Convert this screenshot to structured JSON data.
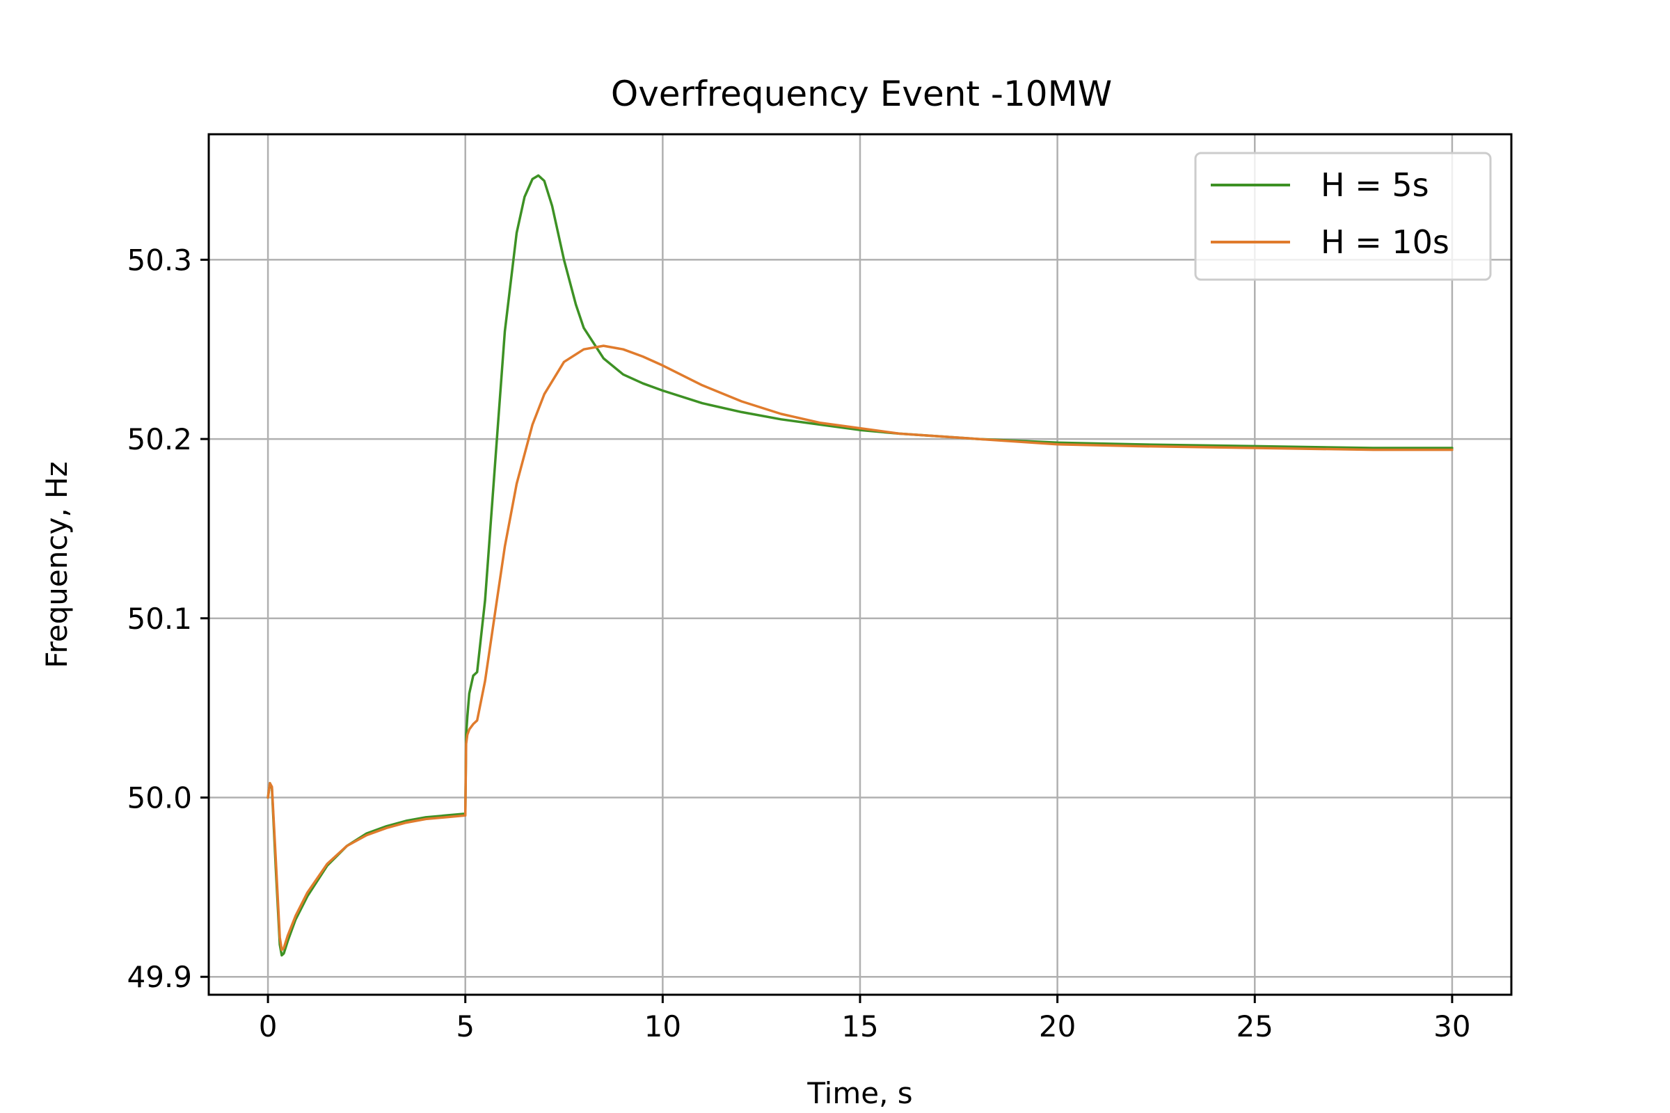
{
  "chart_data": {
    "type": "line",
    "title": "Overfrequency Event -10MW",
    "xlabel": "Time, s",
    "ylabel": "Frequency, Hz",
    "xlim": [
      -1.5,
      31.5
    ],
    "ylim": [
      49.89,
      50.37
    ],
    "xticks": [
      0,
      5,
      10,
      15,
      20,
      25,
      30
    ],
    "xtick_labels": [
      "0",
      "5",
      "10",
      "15",
      "20",
      "25",
      "30"
    ],
    "yticks": [
      49.9,
      50.0,
      50.1,
      50.2,
      50.3
    ],
    "ytick_labels": [
      "49.9",
      "50.0",
      "50.1",
      "50.2",
      "50.3"
    ],
    "grid": true,
    "legend_position": "top-right",
    "colors": {
      "h5": "#3d9124",
      "h10": "#e07b2c"
    },
    "series": [
      {
        "name": "H = 5s",
        "color": "#3d9124",
        "x": [
          0,
          0.05,
          0.1,
          0.2,
          0.3,
          0.35,
          0.4,
          0.5,
          0.7,
          1.0,
          1.5,
          2.0,
          2.5,
          3.0,
          3.5,
          4.0,
          4.5,
          5.0,
          5.02,
          5.05,
          5.1,
          5.2,
          5.3,
          5.5,
          5.8,
          6.0,
          6.3,
          6.5,
          6.7,
          6.85,
          7.0,
          7.2,
          7.5,
          7.8,
          8.0,
          8.5,
          9.0,
          9.5,
          10.0,
          11.0,
          12.0,
          13.0,
          14.0,
          15.0,
          16.0,
          18.0,
          20.0,
          22.0,
          25.0,
          28.0,
          30.0
        ],
        "y": [
          50.0,
          50.008,
          50.005,
          49.96,
          49.918,
          49.912,
          49.913,
          49.92,
          49.932,
          49.945,
          49.962,
          49.973,
          49.98,
          49.984,
          49.987,
          49.989,
          49.99,
          49.991,
          50.035,
          50.045,
          50.058,
          50.068,
          50.07,
          50.11,
          50.2,
          50.26,
          50.315,
          50.335,
          50.345,
          50.347,
          50.344,
          50.33,
          50.3,
          50.275,
          50.262,
          50.245,
          50.236,
          50.231,
          50.227,
          50.22,
          50.215,
          50.211,
          50.208,
          50.205,
          50.203,
          50.2,
          50.198,
          50.197,
          50.196,
          50.195,
          50.195
        ]
      },
      {
        "name": "H = 10s",
        "color": "#e07b2c",
        "x": [
          0,
          0.05,
          0.1,
          0.2,
          0.3,
          0.35,
          0.4,
          0.5,
          0.7,
          1.0,
          1.5,
          2.0,
          2.5,
          3.0,
          3.5,
          4.0,
          4.5,
          5.0,
          5.02,
          5.05,
          5.1,
          5.2,
          5.3,
          5.5,
          5.8,
          6.0,
          6.3,
          6.7,
          7.0,
          7.5,
          8.0,
          8.5,
          9.0,
          9.5,
          10.0,
          11.0,
          12.0,
          13.0,
          14.0,
          15.0,
          16.0,
          18.0,
          20.0,
          22.0,
          25.0,
          28.0,
          30.0
        ],
        "y": [
          50.0,
          50.008,
          50.006,
          49.965,
          49.922,
          49.915,
          49.916,
          49.923,
          49.934,
          49.947,
          49.963,
          49.973,
          49.979,
          49.983,
          49.986,
          49.988,
          49.989,
          49.99,
          50.03,
          50.035,
          50.038,
          50.041,
          50.043,
          50.065,
          50.11,
          50.14,
          50.175,
          50.208,
          50.225,
          50.243,
          50.25,
          50.252,
          50.25,
          50.246,
          50.241,
          50.23,
          50.221,
          50.214,
          50.209,
          50.206,
          50.203,
          50.2,
          50.197,
          50.196,
          50.195,
          50.194,
          50.194
        ]
      }
    ]
  }
}
